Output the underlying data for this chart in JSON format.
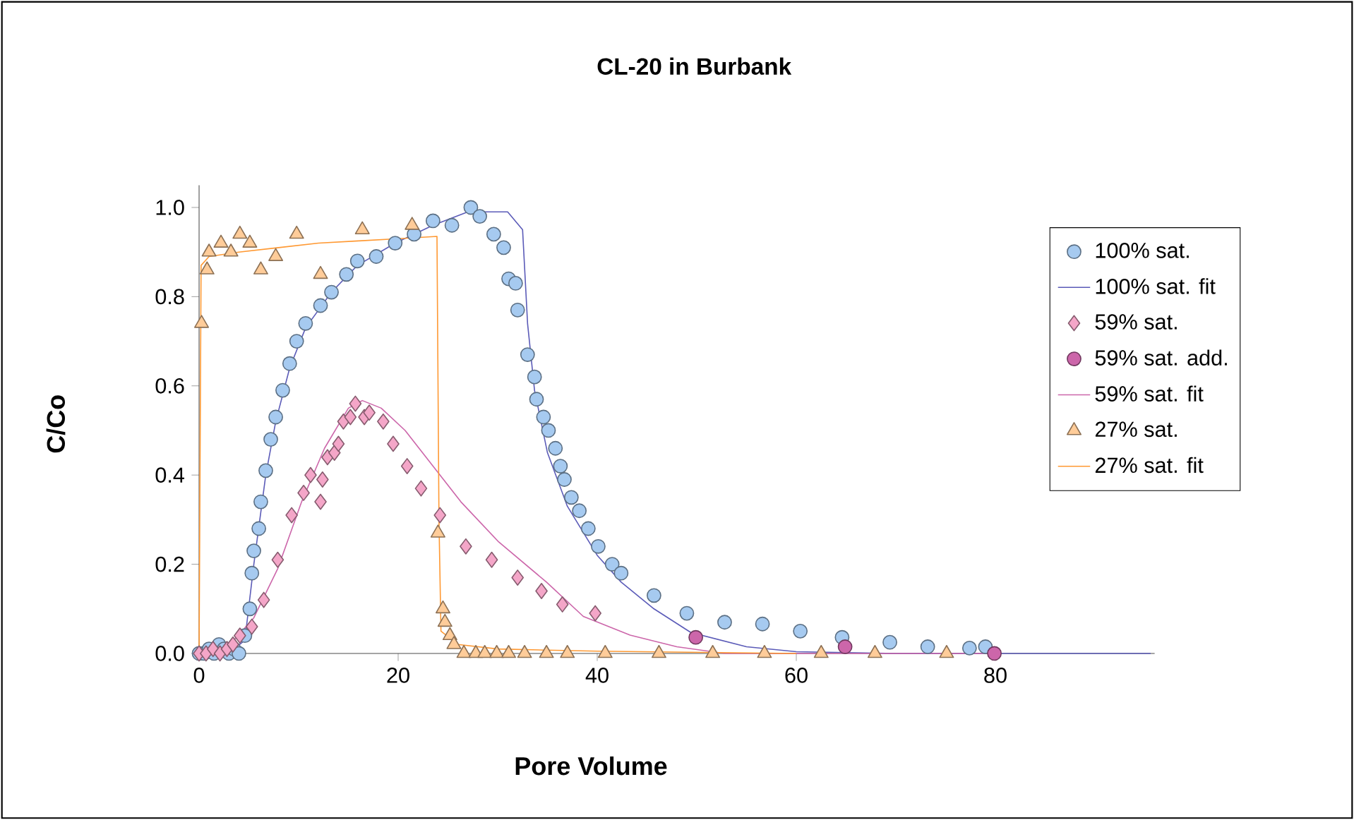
{
  "chart_data": {
    "type": "scatter",
    "title": "CL-20 in Burbank",
    "xlabel": "Pore Volume",
    "ylabel": "C/Co",
    "xlim": [
      0,
      96
    ],
    "ylim": [
      0,
      1.05
    ],
    "xticks": [
      0,
      20,
      40,
      60,
      80
    ],
    "yticks": [
      {
        "value": 0,
        "label": "0.0"
      },
      {
        "value": 0.2,
        "label": "0.2"
      },
      {
        "value": 0.4,
        "label": "0.4"
      },
      {
        "value": 0.6,
        "label": "0.6"
      },
      {
        "value": 0.8,
        "label": "0.8"
      },
      {
        "value": 1,
        "label": "1.0"
      }
    ],
    "legend": "right",
    "series": [
      {
        "name": "100% sat.",
        "marker": "circle",
        "color": "#a6caf0",
        "x": [
          0,
          0.5,
          1,
          1.5,
          2,
          2.5,
          3,
          3.5,
          4,
          4.6,
          5.1,
          5.3,
          5.5,
          6.0,
          6.2,
          6.7,
          7.2,
          7.7,
          8.4,
          9.1,
          9.8,
          10.7,
          12.2,
          13.3,
          14.8,
          15.9,
          17.8,
          19.7,
          21.6,
          23.5,
          25.4,
          27.3,
          28.2,
          29.6,
          30.6,
          31.1,
          31.8,
          32.0,
          33.0,
          33.7,
          33.9,
          34.6,
          35.1,
          35.8,
          36.3,
          36.7,
          37.4,
          38.2,
          39.1,
          40.1,
          41.5,
          42.4,
          45.7,
          49.0,
          52.8,
          56.6,
          60.4,
          64.6,
          69.4,
          73.2,
          77.4,
          79.0
        ],
        "values": [
          0,
          0,
          0.01,
          0,
          0.02,
          0.01,
          0,
          0.01,
          0,
          0.04,
          0.1,
          0.18,
          0.23,
          0.28,
          0.34,
          0.41,
          0.48,
          0.53,
          0.59,
          0.65,
          0.7,
          0.74,
          0.78,
          0.81,
          0.85,
          0.88,
          0.89,
          0.92,
          0.94,
          0.97,
          0.96,
          1.0,
          0.98,
          0.94,
          0.91,
          0.84,
          0.83,
          0.77,
          0.67,
          0.62,
          0.57,
          0.53,
          0.5,
          0.46,
          0.42,
          0.39,
          0.35,
          0.32,
          0.28,
          0.24,
          0.2,
          0.18,
          0.13,
          0.09,
          0.07,
          0.066,
          0.05,
          0.036,
          0.025,
          0.015,
          0.012,
          0.015
        ]
      },
      {
        "name": "100% sat. fit",
        "type": "line",
        "marker": "none",
        "color": "#5b5bb8",
        "x": [
          0,
          3,
          4.6,
          5.5,
          6.7,
          7.7,
          9.1,
          10.7,
          13.3,
          15.9,
          19.7,
          23.5,
          27,
          31,
          32.5,
          33,
          33.7,
          35,
          37,
          40,
          42.4,
          45.7,
          49.4,
          55,
          60,
          70,
          95.6
        ],
        "values": [
          0,
          0,
          0.03,
          0.2,
          0.4,
          0.52,
          0.64,
          0.73,
          0.81,
          0.87,
          0.92,
          0.96,
          0.99,
          0.99,
          0.95,
          0.74,
          0.59,
          0.45,
          0.33,
          0.22,
          0.16,
          0.1,
          0.047,
          0.015,
          0.004,
          0,
          0
        ]
      },
      {
        "name": "59% sat.",
        "marker": "diamond",
        "color": "#f4a6c8",
        "x": [
          0,
          0.7,
          1.4,
          2.1,
          2.8,
          3.4,
          4.1,
          5.3,
          6.5,
          7.9,
          9.3,
          10.5,
          11.2,
          12.2,
          12.4,
          12.9,
          13.6,
          14.0,
          14.5,
          15.2,
          15.7,
          16.6,
          17.1,
          18.5,
          19.5,
          20.9,
          22.3,
          24.2,
          26.8,
          29.4,
          32.0,
          34.4,
          36.5,
          39.8
        ],
        "values": [
          0,
          0,
          0.01,
          0,
          0.01,
          0.02,
          0.04,
          0.06,
          0.12,
          0.21,
          0.31,
          0.36,
          0.4,
          0.34,
          0.39,
          0.44,
          0.45,
          0.47,
          0.52,
          0.53,
          0.56,
          0.53,
          0.54,
          0.52,
          0.47,
          0.42,
          0.37,
          0.31,
          0.24,
          0.21,
          0.17,
          0.14,
          0.11,
          0.09
        ]
      },
      {
        "name": "59% sat. add.",
        "marker": "circle",
        "color": "#cc66aa",
        "x": [
          49.9,
          64.9,
          79.9
        ],
        "values": [
          0.036,
          0.015,
          0
        ]
      },
      {
        "name": "59% sat. fit",
        "type": "line",
        "marker": "none",
        "color": "#cc66aa",
        "x": [
          0,
          2.7,
          5.5,
          7.9,
          10.3,
          12.6,
          15.0,
          16.4,
          18.3,
          20.7,
          23.5,
          26.3,
          30.1,
          34.9,
          38.6,
          43.3,
          48,
          52.8,
          80
        ],
        "values": [
          0,
          0.01,
          0.08,
          0.19,
          0.34,
          0.46,
          0.55,
          0.567,
          0.55,
          0.5,
          0.42,
          0.34,
          0.25,
          0.16,
          0.083,
          0.041,
          0.015,
          0,
          0
        ]
      },
      {
        "name": "27% sat.",
        "marker": "triangle",
        "color": "#ffcc99",
        "x": [
          0.25,
          0.8,
          1.0,
          2.2,
          3.2,
          4.1,
          5.1,
          6.2,
          7.7,
          9.8,
          12.2,
          16.4,
          21.4,
          24.0,
          24.5,
          24.7,
          25.2,
          25.6,
          26.6,
          27.8,
          28.7,
          29.9,
          31.1,
          32.7,
          34.9,
          37.0,
          40.8,
          46.2,
          51.6,
          56.8,
          62.5,
          67.9,
          75.1
        ],
        "values": [
          0.74,
          0.86,
          0.9,
          0.92,
          0.9,
          0.94,
          0.92,
          0.86,
          0.89,
          0.94,
          0.85,
          0.95,
          0.96,
          0.27,
          0.1,
          0.07,
          0.04,
          0.02,
          0,
          0,
          0,
          0,
          0,
          0,
          0,
          0,
          0,
          0,
          0,
          0,
          0,
          0,
          0
        ]
      },
      {
        "name": "27% sat. fit",
        "type": "line",
        "marker": "none",
        "color": "#ff9933",
        "x": [
          0,
          0.2,
          1,
          4,
          8,
          12,
          16,
          20,
          23.9,
          24.1,
          24.3,
          26,
          30,
          40,
          60
        ],
        "values": [
          0,
          0.87,
          0.89,
          0.9,
          0.91,
          0.92,
          0.925,
          0.93,
          0.935,
          0.3,
          0.05,
          0.02,
          0.01,
          0.005,
          0
        ]
      }
    ]
  }
}
